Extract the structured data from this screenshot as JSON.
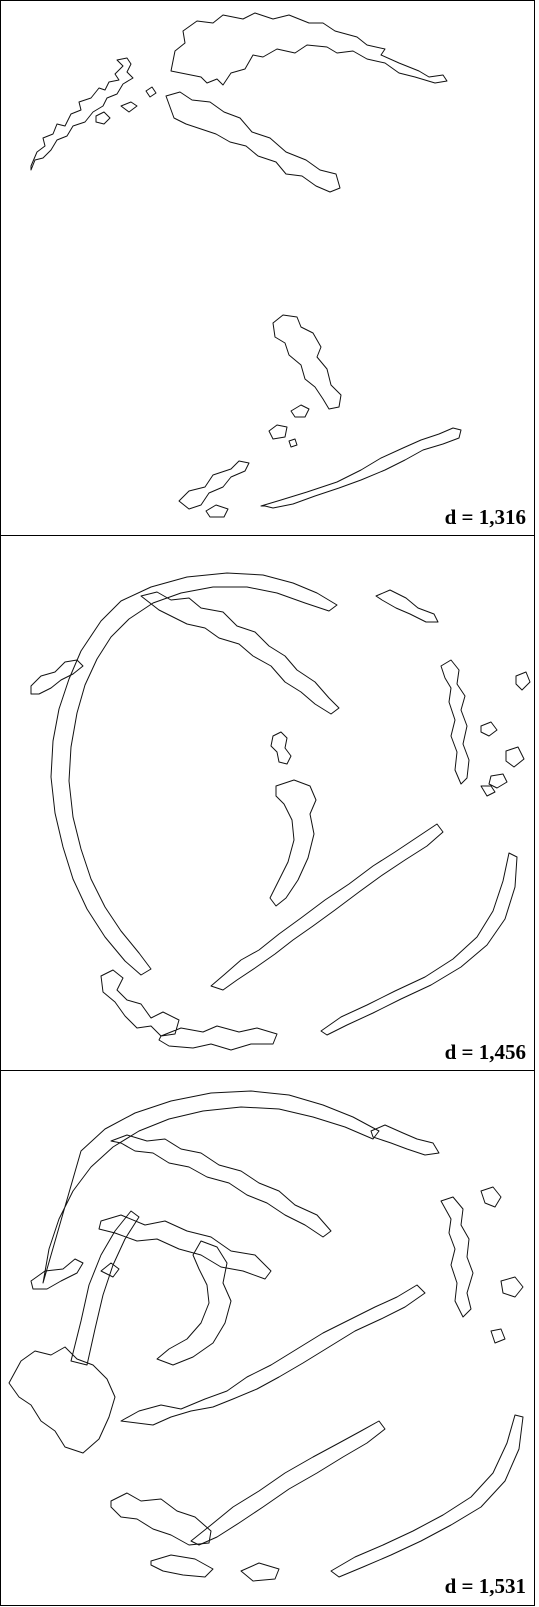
{
  "panels": [
    {
      "label": "d = 1,316"
    },
    {
      "label": "d = 1,456"
    },
    {
      "label": "d = 1,531"
    }
  ]
}
